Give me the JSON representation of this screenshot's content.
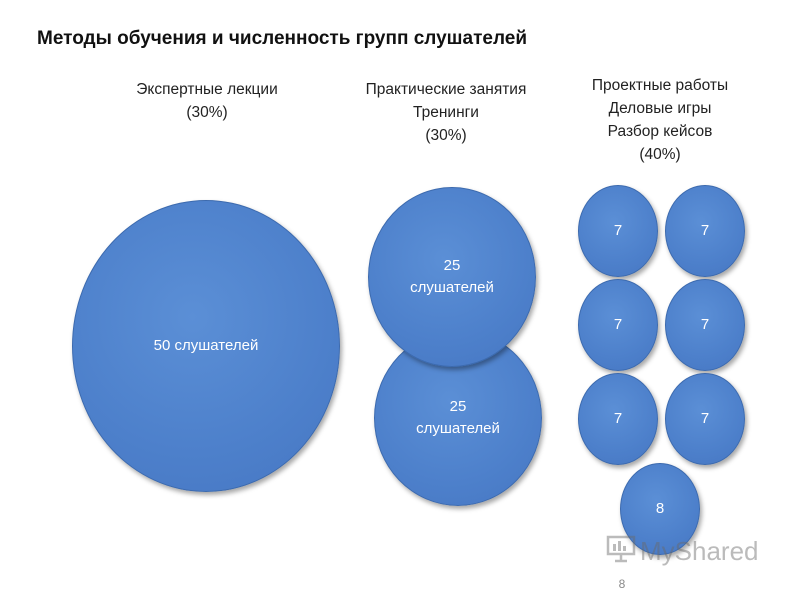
{
  "title": "Методы обучения и численность групп слушателей",
  "columns": [
    {
      "header": [
        "Экспертные лекции",
        "(30%)"
      ],
      "circles": [
        {
          "lines": [
            "50 слушателей"
          ]
        }
      ]
    },
    {
      "header": [
        "Практические занятия",
        "Тренинги",
        "(30%)"
      ],
      "circles": [
        {
          "lines": [
            "25",
            "слушателей"
          ]
        },
        {
          "lines": [
            "25",
            "слушателей"
          ]
        }
      ]
    },
    {
      "header": [
        "Проектные работы",
        "Деловые игры",
        "Разбор кейсов",
        "(40%)"
      ],
      "circles": [
        {
          "lines": [
            "7"
          ]
        },
        {
          "lines": [
            "7"
          ]
        },
        {
          "lines": [
            "7"
          ]
        },
        {
          "lines": [
            "7"
          ]
        },
        {
          "lines": [
            "7"
          ]
        },
        {
          "lines": [
            "7"
          ]
        },
        {
          "lines": [
            "8"
          ]
        }
      ]
    }
  ],
  "watermark": {
    "text": "MyShared",
    "icon": "presentation-board-icon"
  },
  "page_number": "8",
  "colors": {
    "circle_fill": "#4f81cb",
    "circle_border": "#3c6aae",
    "circle_text": "#ffffff",
    "title_text": "#111111"
  }
}
